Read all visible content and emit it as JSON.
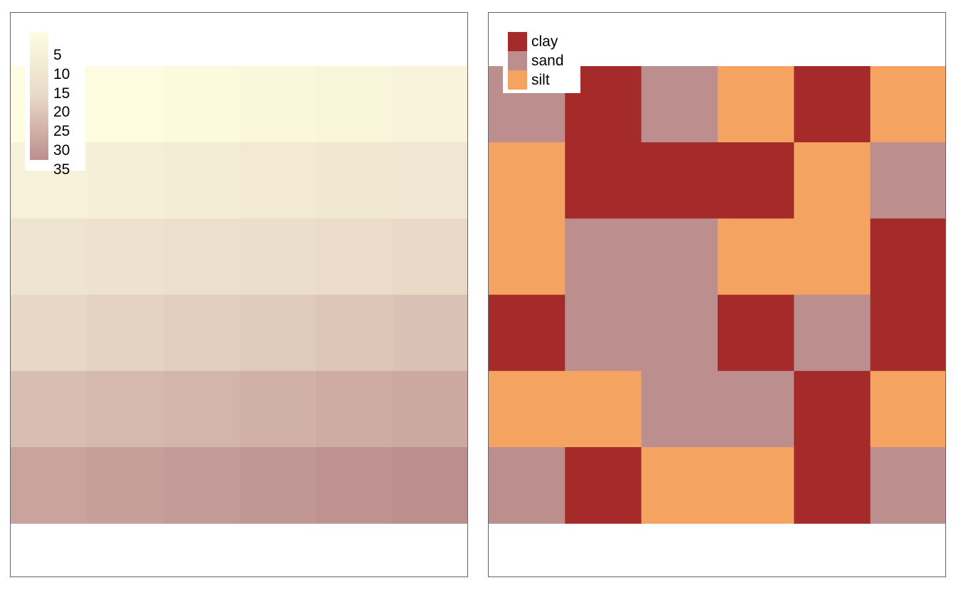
{
  "chart_data": [
    {
      "type": "heatmap",
      "title": "",
      "colorbar": {
        "ticks": [
          "5",
          "10",
          "15",
          "20",
          "25",
          "30",
          "35"
        ],
        "tick_values": [
          5,
          10,
          15,
          20,
          25,
          30,
          35
        ],
        "range": [
          1,
          36
        ],
        "colors": [
          "#FEFDE1",
          "#E8D9C7",
          "#BC8E8E"
        ]
      },
      "rows": 6,
      "cols": 6,
      "values": [
        [
          1,
          2,
          3,
          4,
          5,
          6
        ],
        [
          7,
          8,
          9,
          10,
          11,
          12
        ],
        [
          13,
          14,
          15,
          16,
          17,
          18
        ],
        [
          19,
          20,
          21,
          22,
          23,
          24
        ],
        [
          25,
          26,
          27,
          28,
          29,
          30
        ],
        [
          31,
          32,
          33,
          34,
          35,
          36
        ]
      ]
    },
    {
      "type": "heatmap",
      "title": "",
      "legend": [
        {
          "label": "clay",
          "color": "#A52A2A"
        },
        {
          "label": "sand",
          "color": "#BC8E8E"
        },
        {
          "label": "silt",
          "color": "#F4A460"
        }
      ],
      "rows": 6,
      "cols": 6,
      "values": [
        [
          "sand",
          "clay",
          "sand",
          "silt",
          "clay",
          "silt"
        ],
        [
          "silt",
          "clay",
          "clay",
          "clay",
          "silt",
          "sand"
        ],
        [
          "silt",
          "sand",
          "sand",
          "silt",
          "silt",
          "clay"
        ],
        [
          "clay",
          "sand",
          "sand",
          "clay",
          "sand",
          "clay"
        ],
        [
          "silt",
          "silt",
          "sand",
          "sand",
          "clay",
          "silt"
        ],
        [
          "sand",
          "clay",
          "silt",
          "silt",
          "clay",
          "sand"
        ]
      ]
    }
  ]
}
